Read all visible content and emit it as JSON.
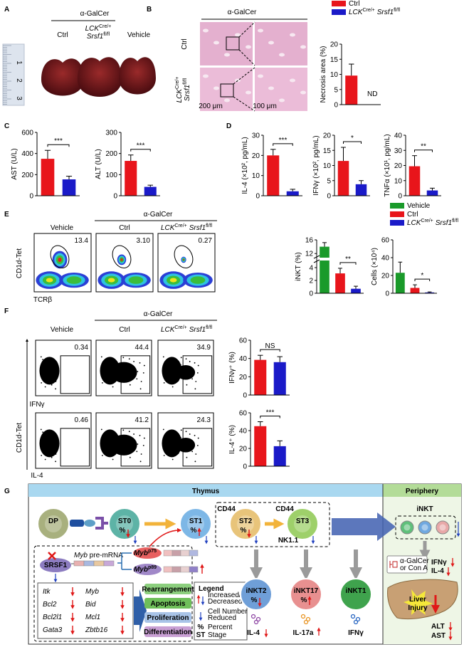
{
  "genotype": [
    "LCK",
    "Cre/+",
    "Srsf1",
    "fl/fl"
  ],
  "A": {
    "label": "A",
    "treatment": "α-GalCer",
    "groups": [
      "Ctrl",
      "Vehicle"
    ],
    "ruler": [
      "1",
      "2",
      "3"
    ]
  },
  "B": {
    "label": "B",
    "treatment": "α-GalCer",
    "rows": [
      "Ctrl"
    ],
    "scale_bars": [
      "200 μm",
      "100 μm"
    ]
  },
  "C": {
    "label": "C"
  },
  "D": {
    "label": "D"
  },
  "E": {
    "label": "E",
    "treatment": "α-GalCer",
    "columns": [
      "Vehicle",
      "Ctrl"
    ],
    "gates": [
      "13.4",
      "3.10",
      "0.27"
    ],
    "y_axis": "CD1d-Tet",
    "x_axis": "TCRβ"
  },
  "F": {
    "label": "F",
    "treatment": "α-GalCer",
    "columns": [
      "Vehicle",
      "Ctrl"
    ],
    "y_axis": "CD1d-Tet",
    "rows": [
      {
        "x_axis": "IFNγ",
        "gates": [
          "0.34",
          "44.4",
          "34.9"
        ]
      },
      {
        "x_axis": "IL-4",
        "gates": [
          "0.46",
          "41.2",
          "24.3"
        ]
      }
    ]
  },
  "G": {
    "label": "G",
    "sections": [
      "Thymus",
      "Periphery"
    ],
    "stages": [
      "DP",
      "ST0",
      "ST1",
      "ST2",
      "ST3"
    ],
    "percent": "%",
    "markers": [
      "CD44",
      "CD44",
      "NK1.1"
    ],
    "srsf1": "SRSF1",
    "pre_mrna": [
      "Myb",
      " pre-mRNA"
    ],
    "isoforms": [
      [
        "Myb",
        "p75"
      ],
      [
        "Myb",
        "p89"
      ]
    ],
    "genes": [
      "Itk",
      "Myb",
      "Bcl2",
      "Bid",
      "Bcl2l1",
      "Mcl1",
      "Gata3",
      "Zbtb16"
    ],
    "processes": [
      "Rearrangement",
      "Apoptosis",
      "Proliferation",
      "Differentiation"
    ],
    "legend": {
      "title": "Legend",
      "items": [
        [
          "Increased/",
          "Decreased"
        ],
        [
          "Cell Number",
          "Reduced"
        ],
        [
          "Percent"
        ],
        [
          "Stage"
        ]
      ],
      "keys": [
        "%",
        "ST"
      ]
    },
    "subsets": [
      {
        "name": "iNKT2",
        "cytokine": "IL-4"
      },
      {
        "name": "iNKT17",
        "cytokine": "IL-17a"
      },
      {
        "name": "iNKT1",
        "cytokine": "IFNγ"
      }
    ],
    "periphery": {
      "cell": "iNKT",
      "stimulus": [
        "α-GalCer",
        "or Con A"
      ],
      "cytokines": [
        "IFNγ",
        "IL-4"
      ],
      "injury": [
        "Liver",
        "Injury"
      ],
      "enzymes": [
        "ALT",
        "AST"
      ]
    }
  },
  "chart_data": [
    {
      "type": "bar",
      "ylabel": "Necrosis area (%)",
      "ylim": [
        0,
        20
      ],
      "yticks": [
        0,
        5,
        10,
        15,
        20
      ],
      "legend": true,
      "series": [
        {
          "name": "Ctrl",
          "color": "#e8151b",
          "values": [
            9.6
          ],
          "errors": [
            3.8
          ]
        },
        {
          "name": [
            "LCK",
            "Cre/+",
            "Srsf1",
            "fl/fl"
          ],
          "color": "#1a1ac8",
          "values": [
            null
          ],
          "value_labels": [
            "ND"
          ]
        }
      ]
    },
    {
      "type": "bar",
      "ylabel": "AST (U/L)",
      "ylim": [
        0,
        600
      ],
      "yticks": [
        0,
        200,
        400,
        600
      ],
      "significance": "***",
      "series": [
        {
          "color": "#e8151b",
          "values": [
            350
          ],
          "errors": [
            80
          ]
        },
        {
          "color": "#1a1ac8",
          "values": [
            155
          ],
          "errors": [
            30
          ]
        }
      ]
    },
    {
      "type": "bar",
      "ylabel": "ALT (U/L)",
      "ylim": [
        0,
        300
      ],
      "yticks": [
        0,
        100,
        200,
        300
      ],
      "significance": "***",
      "series": [
        {
          "color": "#e8151b",
          "values": [
            165
          ],
          "errors": [
            28
          ]
        },
        {
          "color": "#1a1ac8",
          "values": [
            42
          ],
          "errors": [
            8
          ]
        }
      ]
    },
    {
      "type": "bar",
      "ylabel": "IL-4 (×10², pg/mL)",
      "ylim": [
        0,
        30
      ],
      "yticks": [
        0,
        10,
        20,
        30
      ],
      "significance": "***",
      "series": [
        {
          "color": "#e8151b",
          "values": [
            20
          ],
          "errors": [
            3
          ]
        },
        {
          "color": "#1a1ac8",
          "values": [
            2.2
          ],
          "errors": [
            1
          ]
        }
      ]
    },
    {
      "type": "bar",
      "ylabel": "IFNγ (×10², pg/mL)",
      "ylim": [
        0,
        20
      ],
      "yticks": [
        0,
        5,
        10,
        15,
        20
      ],
      "significance": "*",
      "series": [
        {
          "color": "#e8151b",
          "values": [
            11.5
          ],
          "errors": [
            4.5
          ]
        },
        {
          "color": "#1a1ac8",
          "values": [
            3.8
          ],
          "errors": [
            1.2
          ]
        }
      ]
    },
    {
      "type": "bar",
      "ylabel": "TNFα (×10¹, pg/mL)",
      "ylim": [
        0,
        40
      ],
      "yticks": [
        0,
        10,
        20,
        30,
        40
      ],
      "significance": "**",
      "series": [
        {
          "color": "#e8151b",
          "values": [
            19.5
          ],
          "errors": [
            7
          ]
        },
        {
          "color": "#1a1ac8",
          "values": [
            3.5
          ],
          "errors": [
            1.5
          ]
        }
      ]
    },
    {
      "type": "bar",
      "ylabel": "iNKT (%)",
      "ylim": [
        0,
        16
      ],
      "yticks": [
        0,
        2,
        4,
        12,
        16
      ],
      "axis_break": [
        5,
        11
      ],
      "significance": "**",
      "legend": true,
      "series": [
        {
          "name": "Vehicle",
          "color": "#1a9a2a",
          "values": [
            14
          ],
          "errors": [
            1.2
          ]
        },
        {
          "name": "Ctrl",
          "color": "#e8151b",
          "values": [
            3.1
          ],
          "errors": [
            0.8
          ]
        },
        {
          "name": [
            "LCK",
            "Cre/+",
            "Srsf1",
            "fl/fl"
          ],
          "color": "#1a1ac8",
          "values": [
            0.7
          ],
          "errors": [
            0.4
          ]
        }
      ]
    },
    {
      "type": "bar",
      "ylabel": "Cells (×10⁴)",
      "ylim": [
        0,
        60
      ],
      "yticks": [
        0,
        20,
        40,
        60
      ],
      "significance": "*",
      "series": [
        {
          "color": "#1a9a2a",
          "values": [
            23
          ],
          "errors": [
            12
          ]
        },
        {
          "color": "#e8151b",
          "values": [
            6
          ],
          "errors": [
            3.5
          ]
        },
        {
          "color": "#1a1ac8",
          "values": [
            0.9
          ],
          "errors": [
            0.6
          ]
        }
      ]
    },
    {
      "type": "bar",
      "ylabel": "IFNγ⁺ (%)",
      "ylim": [
        0,
        60
      ],
      "yticks": [
        0,
        20,
        40,
        60
      ],
      "significance": "NS",
      "series": [
        {
          "color": "#e8151b",
          "values": [
            38.5
          ],
          "errors": [
            5
          ]
        },
        {
          "color": "#1a1ac8",
          "values": [
            36
          ],
          "errors": [
            6
          ]
        }
      ]
    },
    {
      "type": "bar",
      "ylabel": "IL-4⁺ (%)",
      "ylim": [
        0,
        60
      ],
      "yticks": [
        0,
        20,
        40,
        60
      ],
      "significance": "***",
      "series": [
        {
          "color": "#e8151b",
          "values": [
            45
          ],
          "errors": [
            5
          ]
        },
        {
          "color": "#1a1ac8",
          "values": [
            22.5
          ],
          "errors": [
            6
          ]
        }
      ]
    }
  ]
}
